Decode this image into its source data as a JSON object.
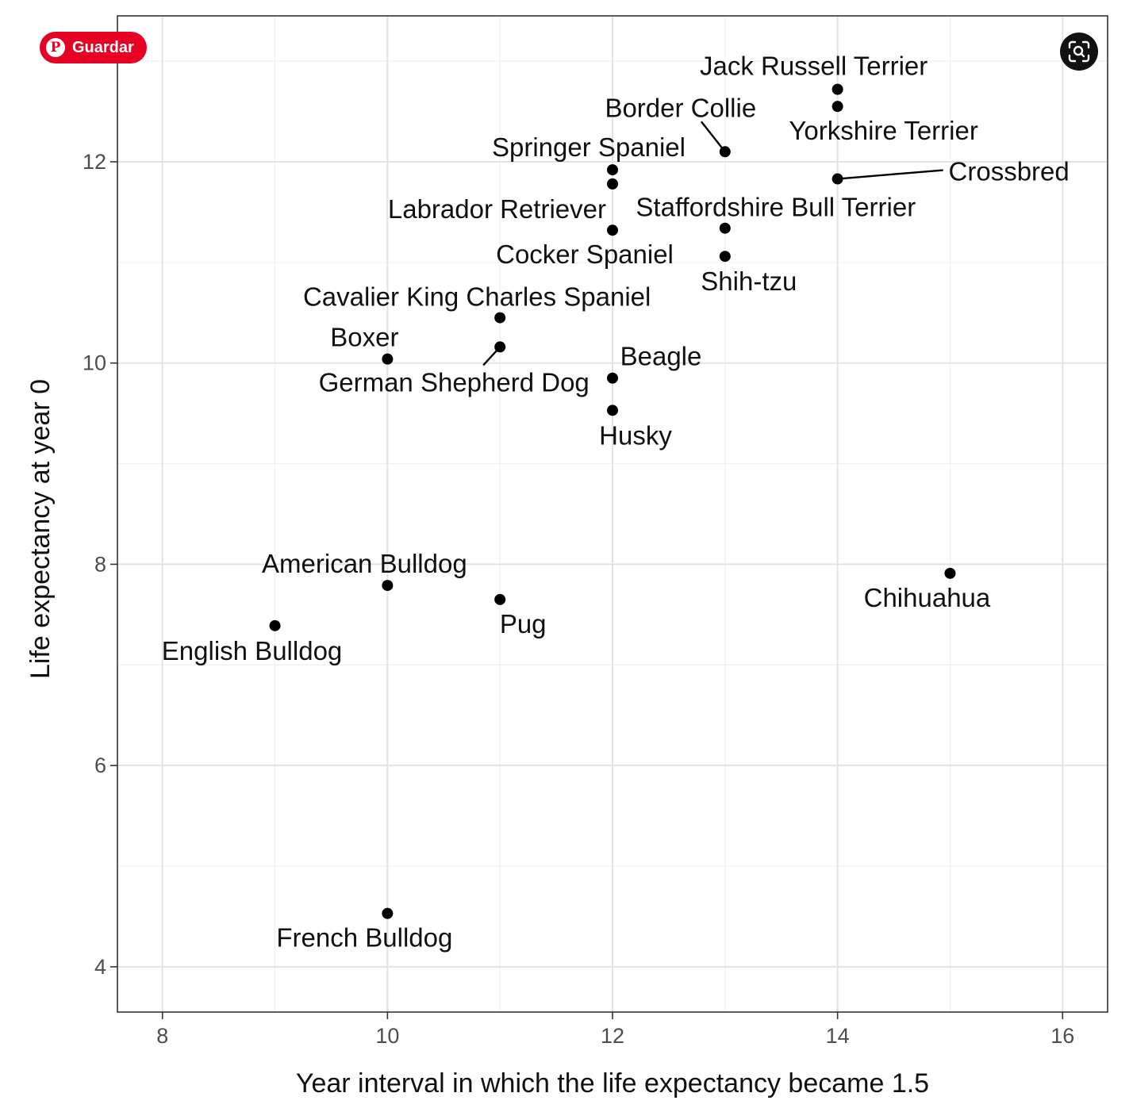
{
  "overlay": {
    "save_label": "Guardar",
    "save_icon": "pinterest-icon",
    "lens_icon": "visual-search-icon",
    "save_color": "#e60023"
  },
  "chart_data": {
    "type": "scatter",
    "title": "",
    "xlabel": "Year interval in which the life expectancy became 1.5",
    "ylabel": "Life expectancy at year 0",
    "xlim": [
      7.6,
      16.4
    ],
    "ylim": [
      3.55,
      13.45
    ],
    "x_ticks": [
      8,
      10,
      12,
      14,
      16
    ],
    "y_ticks": [
      4,
      6,
      8,
      10,
      12
    ],
    "grid": true,
    "point_color": "#000000",
    "points": [
      {
        "label": "Jack Russell Terrier",
        "x": 14,
        "y": 12.72
      },
      {
        "label": "Yorkshire Terrier",
        "x": 14,
        "y": 12.55
      },
      {
        "label": "Border Collie",
        "x": 13,
        "y": 12.1
      },
      {
        "label": "Crossbred",
        "x": 14,
        "y": 11.83
      },
      {
        "label": "Springer Spaniel",
        "x": 12,
        "y": 11.92
      },
      {
        "label": "Labrador Retriever",
        "x": 12,
        "y": 11.78
      },
      {
        "label": "Cocker Spaniel",
        "x": 12,
        "y": 11.32
      },
      {
        "label": "Staffordshire Bull Terrier",
        "x": 13,
        "y": 11.34
      },
      {
        "label": "Shih-tzu",
        "x": 13,
        "y": 11.06
      },
      {
        "label": "Cavalier King Charles Spaniel",
        "x": 11,
        "y": 10.45
      },
      {
        "label": "German Shepherd Dog",
        "x": 11,
        "y": 10.16
      },
      {
        "label": "Boxer",
        "x": 10,
        "y": 10.04
      },
      {
        "label": "Beagle",
        "x": 12,
        "y": 9.85
      },
      {
        "label": "Husky",
        "x": 12,
        "y": 9.53
      },
      {
        "label": "Chihuahua",
        "x": 15,
        "y": 7.91
      },
      {
        "label": "American Bulldog",
        "x": 10,
        "y": 7.79
      },
      {
        "label": "Pug",
        "x": 11,
        "y": 7.65
      },
      {
        "label": "English Bulldog",
        "x": 9,
        "y": 7.39
      },
      {
        "label": "French Bulldog",
        "x": 10,
        "y": 4.53
      }
    ]
  }
}
